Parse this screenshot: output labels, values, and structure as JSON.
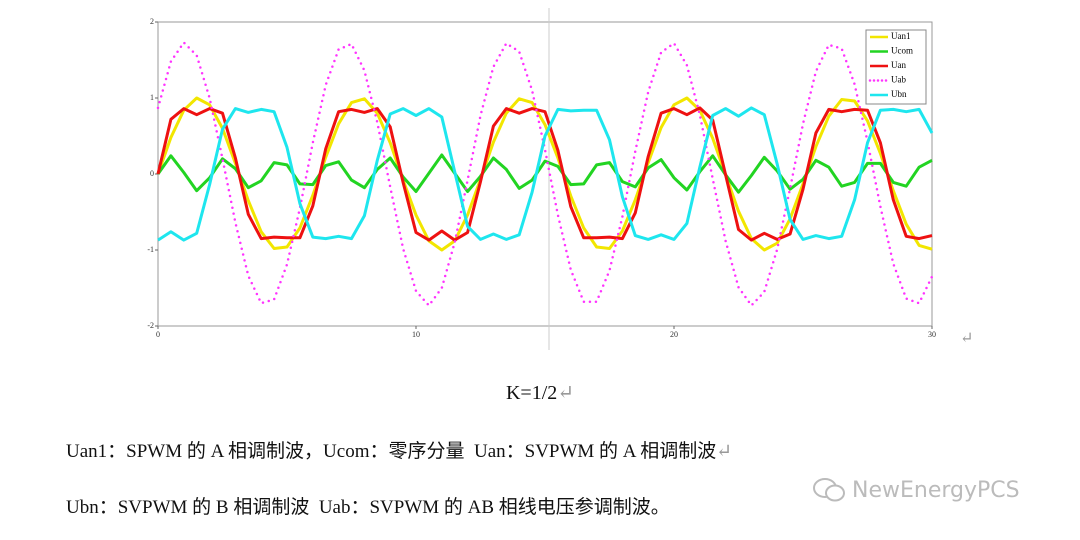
{
  "chart_data": {
    "type": "line",
    "x": [
      0,
      0.5,
      1,
      1.5,
      2,
      2.5,
      3,
      3.5,
      4,
      4.5,
      5,
      5.5,
      6,
      6.5,
      7,
      7.5,
      8,
      8.5,
      9,
      9.5,
      10,
      10.5,
      11,
      11.5,
      12,
      12.5,
      13,
      13.5,
      14,
      14.5,
      15,
      15.5,
      16,
      16.5,
      17,
      17.5,
      18,
      18.5,
      19,
      19.5,
      20,
      20.5,
      21,
      21.5,
      22,
      22.5,
      23,
      23.5,
      24,
      24.5,
      25,
      25.5,
      26,
      26.5,
      27,
      27.5,
      28,
      28.5,
      29,
      29.5,
      30
    ],
    "series": [
      {
        "name": "Uan1",
        "color": "#f2e600",
        "values": [
          0,
          0.48,
          0.84,
          1,
          0.91,
          0.6,
          0.14,
          -0.35,
          -0.76,
          -0.98,
          -0.96,
          -0.71,
          -0.28,
          0.22,
          0.66,
          0.94,
          0.99,
          0.8,
          0.41,
          -0.08,
          -0.54,
          -0.88,
          -1,
          -0.88,
          -0.54,
          -0.07,
          0.42,
          0.8,
          0.99,
          0.94,
          0.65,
          0.21,
          -0.29,
          -0.71,
          -0.96,
          -0.98,
          -0.75,
          -0.34,
          0.15,
          0.61,
          0.91,
          1,
          0.84,
          0.47,
          -0.01,
          -0.49,
          -0.85,
          -1,
          -0.91,
          -0.59,
          -0.13,
          0.36,
          0.76,
          0.98,
          0.96,
          0.7,
          0.27,
          -0.22,
          -0.66,
          -0.94,
          -0.99
        ]
      },
      {
        "name": "Ucom",
        "color": "#22d422",
        "values": [
          0,
          0.24,
          0.02,
          -0.22,
          -0.05,
          0.2,
          0.07,
          -0.18,
          -0.09,
          0.15,
          0.12,
          -0.13,
          -0.14,
          0.11,
          0.16,
          -0.08,
          -0.18,
          0.06,
          0.21,
          -0.04,
          -0.23,
          0.01,
          0.25,
          0.01,
          -0.23,
          -0.03,
          0.21,
          0.06,
          -0.19,
          -0.08,
          0.17,
          0.1,
          -0.14,
          -0.13,
          0.12,
          0.15,
          -0.1,
          -0.17,
          0.08,
          0.19,
          -0.05,
          -0.21,
          0.03,
          0.24,
          -0.01,
          -0.24,
          -0.02,
          0.22,
          0.04,
          -0.2,
          -0.07,
          0.18,
          0.09,
          -0.16,
          -0.11,
          0.14,
          0.14,
          -0.11,
          -0.16,
          0.09,
          0.18
        ]
      },
      {
        "name": "Uan",
        "color": "#ee1111",
        "values": [
          0,
          0.72,
          0.86,
          0.78,
          0.86,
          0.8,
          0.21,
          -0.53,
          -0.85,
          -0.83,
          -0.84,
          -0.84,
          -0.42,
          0.33,
          0.82,
          0.85,
          0.81,
          0.86,
          0.62,
          -0.11,
          -0.77,
          -0.87,
          -0.75,
          -0.87,
          -0.77,
          -0.1,
          0.63,
          0.86,
          0.8,
          0.86,
          0.82,
          0.31,
          -0.43,
          -0.84,
          -0.84,
          -0.83,
          -0.85,
          -0.51,
          0.23,
          0.8,
          0.86,
          0.78,
          0.87,
          0.71,
          -0.01,
          -0.73,
          -0.87,
          -0.78,
          -0.86,
          -0.79,
          -0.2,
          0.54,
          0.85,
          0.82,
          0.85,
          0.84,
          0.41,
          -0.34,
          -0.82,
          -0.85,
          -0.81
        ]
      },
      {
        "name": "Uab",
        "color": "#ff33ff",
        "style": "dotted",
        "values": [
          0.87,
          1.48,
          1.73,
          1.56,
          1,
          0.2,
          -0.64,
          -1.34,
          -1.7,
          -1.65,
          -1.19,
          -0.45,
          0.41,
          1.17,
          1.64,
          1.71,
          1.36,
          0.68,
          -0.17,
          -0.98,
          -1.54,
          -1.73,
          -1.5,
          -0.9,
          -0.08,
          0.77,
          1.41,
          1.72,
          1.61,
          1.1,
          0.32,
          -0.54,
          -1.26,
          -1.68,
          -1.68,
          -1.27,
          -0.56,
          0.3,
          1.08,
          1.6,
          1.72,
          1.43,
          0.78,
          -0.06,
          -0.88,
          -1.49,
          -1.73,
          -1.55,
          -0.99,
          -0.19,
          0.66,
          1.35,
          1.7,
          1.65,
          1.18,
          0.43,
          -0.43,
          -1.18,
          -1.64,
          -1.7,
          -1.35
        ]
      },
      {
        "name": "Ubn",
        "color": "#1ee6ee",
        "values": [
          -0.87,
          -0.76,
          -0.87,
          -0.78,
          -0.14,
          0.59,
          0.86,
          0.81,
          0.85,
          0.82,
          0.35,
          -0.39,
          -0.83,
          -0.85,
          -0.82,
          -0.85,
          -0.55,
          0.18,
          0.79,
          0.86,
          0.77,
          0.86,
          0.75,
          0.03,
          -0.69,
          -0.86,
          -0.79,
          -0.86,
          -0.8,
          -0.24,
          0.5,
          0.85,
          0.83,
          0.84,
          0.84,
          0.45,
          -0.3,
          -0.81,
          -0.86,
          -0.8,
          -0.86,
          -0.65,
          0.09,
          0.77,
          0.86,
          0.76,
          0.87,
          0.78,
          0.13,
          -0.6,
          -0.86,
          -0.81,
          -0.85,
          -0.82,
          -0.34,
          0.41,
          0.84,
          0.85,
          0.82,
          0.85,
          0.54
        ]
      }
    ],
    "xlim": [
      0,
      30
    ],
    "xticks": [
      0,
      10,
      20,
      30
    ],
    "ylim": [
      -2,
      2
    ],
    "yticks": [
      -2,
      -1,
      0,
      1,
      2
    ],
    "legend": "upper right"
  },
  "chart_paragraph_mark": "↵",
  "caption": "K=1/2",
  "caption_mark": "↵",
  "paragraphs": [
    {
      "text": "Uan1：SPWM 的 A 相调制波，Ucom：零序分量  Uan：SVPWM 的 A 相调制波",
      "mark": "↵"
    },
    {
      "text": "Ubn：SVPWM 的 B 相调制波  Uab：SVPWM 的 AB 相线电压参调制波。"
    }
  ],
  "watermark": "NewEnergyPCS"
}
